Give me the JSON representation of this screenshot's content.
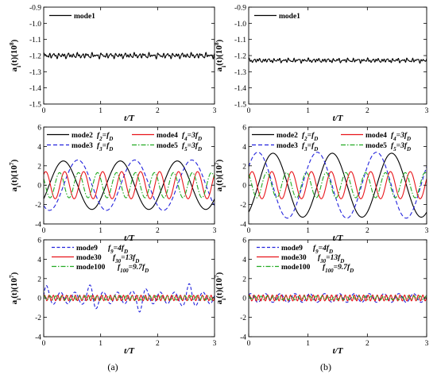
{
  "figure": {
    "column_captions": [
      "(a)",
      "(b)"
    ]
  },
  "chart_data": [
    {
      "type": "line",
      "column": "(a)",
      "row": 0,
      "xlabel": "t/T",
      "ylabel": "a_i(t)(10^8)",
      "ylabel_base": "a",
      "ylabel_sub": "i",
      "ylabel_rest": "(t)(10",
      "ylabel_exp": "8",
      "ylabel_close": ")",
      "xlim": [
        0,
        3
      ],
      "ylim": [
        -1.5,
        -0.9
      ],
      "xticks": [
        0,
        1,
        2,
        3
      ],
      "xtick_labels": [
        "0",
        "1",
        "2",
        "3"
      ],
      "yticks": [
        -1.5,
        -1.4,
        -1.3,
        -1.2,
        -1.1,
        -1.0,
        -0.9
      ],
      "ytick_labels": [
        "-1.5",
        "-1.4",
        "-1.3",
        "-1.2",
        "-1.1",
        "-1.0",
        "-0.9"
      ],
      "legend_position": "top-left",
      "series": [
        {
          "name": "mode1",
          "freq_label": "",
          "color": "#000000",
          "dash": "solid",
          "description": "nearly constant around -1.2, small fluctuations",
          "mean": -1.2,
          "terms": [
            [
              0.008,
              12,
              0.3
            ],
            [
              0.006,
              19,
              1.1
            ],
            [
              0.005,
              27,
              2.0
            ],
            [
              0.004,
              7,
              0.5
            ]
          ]
        }
      ]
    },
    {
      "type": "line",
      "column": "(a)",
      "row": 1,
      "xlabel": "t/T",
      "ylabel": "a_i(t)(10^7)",
      "ylabel_base": "a",
      "ylabel_sub": "i",
      "ylabel_rest": "(t)(10",
      "ylabel_exp": "7",
      "ylabel_close": ")",
      "xlim": [
        0,
        3
      ],
      "ylim": [
        -4,
        6
      ],
      "xticks": [
        0,
        1,
        2,
        3
      ],
      "xtick_labels": [
        "0",
        "1",
        "2",
        "3"
      ],
      "yticks": [
        -4,
        -2,
        0,
        2,
        4,
        6
      ],
      "ytick_labels": [
        "-4",
        "-2",
        "0",
        "2",
        "4",
        "6"
      ],
      "legend_position": "top",
      "series": [
        {
          "name": "mode2",
          "freq_label": "f2=fD",
          "color": "#000000",
          "dash": "solid",
          "mean": 0,
          "terms": [
            [
              2.5,
              1.0,
              -0.6
            ]
          ]
        },
        {
          "name": "mode3",
          "freq_label": "f3=fD",
          "color": "#2222dd",
          "dash": "5,3",
          "mean": 0,
          "terms": [
            [
              2.6,
              1.0,
              -2.2
            ]
          ]
        },
        {
          "name": "mode4",
          "freq_label": "f4=3fD",
          "color": "#e8141a",
          "dash": "solid",
          "mean": 0,
          "terms": [
            [
              1.4,
              3.0,
              0.9
            ]
          ]
        },
        {
          "name": "mode5",
          "freq_label": "f5=3fD",
          "color": "#22aa22",
          "dash": "6,2,1.5,2",
          "mean": 0,
          "terms": [
            [
              1.3,
              3.0,
              2.6
            ]
          ]
        }
      ]
    },
    {
      "type": "line",
      "column": "(a)",
      "row": 2,
      "xlabel": "t/T",
      "ylabel": "a_i(t)(10^7)",
      "ylabel_base": "a",
      "ylabel_sub": "i",
      "ylabel_rest": "(t)(10",
      "ylabel_exp": "7",
      "ylabel_close": ")",
      "xlim": [
        0,
        3
      ],
      "ylim": [
        -4,
        6
      ],
      "xticks": [
        0,
        1,
        2,
        3
      ],
      "xtick_labels": [
        "0",
        "1",
        "2",
        "3"
      ],
      "yticks": [
        -4,
        -2,
        0,
        2,
        4,
        6
      ],
      "ytick_labels": [
        "-4",
        "-2",
        "0",
        "2",
        "4",
        "6"
      ],
      "legend_position": "top",
      "series": [
        {
          "name": "mode9",
          "freq_label": "f9=4fD",
          "color": "#2222dd",
          "dash": "4,2.5",
          "mean": 0,
          "terms": [
            [
              0.6,
              4.0,
              0.4
            ]
          ],
          "burst_period": 0.85,
          "burst_width": 0.12,
          "burst_amp": 0.9
        },
        {
          "name": "mode30",
          "freq_label": "f30=13fD",
          "color": "#e8141a",
          "dash": "solid",
          "mean": 0,
          "terms": [
            [
              0.28,
              13.0,
              0.2
            ]
          ]
        },
        {
          "name": "mode100",
          "freq_label": "f100=9.7fD",
          "color": "#22aa22",
          "dash": "6,2,1.5,2",
          "mean": 0,
          "terms": [
            [
              0.22,
              9.7,
              1.1
            ]
          ]
        }
      ]
    },
    {
      "type": "line",
      "column": "(b)",
      "row": 0,
      "xlabel": "t/T",
      "ylabel": "a_i(t)(10^8)",
      "ylabel_base": "a",
      "ylabel_sub": "i",
      "ylabel_rest": "(t)(10",
      "ylabel_exp": "8",
      "ylabel_close": ")",
      "xlim": [
        0,
        3
      ],
      "ylim": [
        -1.5,
        -0.9
      ],
      "xticks": [
        0,
        1,
        2,
        3
      ],
      "xtick_labels": [
        "0",
        "1",
        "2",
        "3"
      ],
      "yticks": [
        -1.5,
        -1.4,
        -1.3,
        -1.2,
        -1.1,
        -1.0,
        -0.9
      ],
      "ytick_labels": [
        "-1.5",
        "-1.4",
        "-1.3",
        "-1.2",
        "-1.1",
        "-1.0",
        "-0.9"
      ],
      "legend_position": "top-left",
      "series": [
        {
          "name": "mode1",
          "freq_label": "",
          "color": "#000000",
          "dash": "solid",
          "mean": -1.23,
          "terms": [
            [
              0.006,
              12,
              0.7
            ],
            [
              0.005,
              21,
              1.4
            ],
            [
              0.004,
              29,
              0.2
            ],
            [
              0.003,
              6,
              2.1
            ]
          ]
        }
      ]
    },
    {
      "type": "line",
      "column": "(b)",
      "row": 1,
      "xlabel": "t/T",
      "ylabel": "a_i(t)(10^7)",
      "ylabel_base": "a",
      "ylabel_sub": "i",
      "ylabel_rest": "(t)(10",
      "ylabel_exp": "7",
      "ylabel_close": ")",
      "xlim": [
        0,
        3
      ],
      "ylim": [
        -4,
        6
      ],
      "xticks": [
        0,
        1,
        2,
        3
      ],
      "xtick_labels": [
        "0",
        "1",
        "2",
        "3"
      ],
      "yticks": [
        -4,
        -2,
        0,
        2,
        4,
        6
      ],
      "ytick_labels": [
        "-4",
        "-2",
        "0",
        "2",
        "4",
        "6"
      ],
      "legend_position": "top",
      "series": [
        {
          "name": "mode2",
          "freq_label": "f2=fD",
          "color": "#000000",
          "dash": "solid",
          "mean": 0,
          "terms": [
            [
              3.3,
              1.0,
              -1.0
            ]
          ]
        },
        {
          "name": "mode3",
          "freq_label": "f3=fD",
          "color": "#2222dd",
          "dash": "5,3",
          "mean": 0,
          "terms": [
            [
              3.4,
              1.0,
              0.6
            ]
          ]
        },
        {
          "name": "mode4",
          "freq_label": "f4=3fD",
          "color": "#e8141a",
          "dash": "solid",
          "mean": 0,
          "terms": [
            [
              1.4,
              3.0,
              0.5
            ]
          ]
        },
        {
          "name": "mode5",
          "freq_label": "f5=3fD",
          "color": "#22aa22",
          "dash": "6,2,1.5,2",
          "mean": 0,
          "terms": [
            [
              1.3,
              3.0,
              2.1
            ]
          ]
        }
      ]
    },
    {
      "type": "line",
      "column": "(b)",
      "row": 2,
      "xlabel": "t/T",
      "ylabel": "a_i(t)(10^7)",
      "ylabel_base": "a",
      "ylabel_sub": "i",
      "ylabel_rest": "(t)(10",
      "ylabel_exp": "7",
      "ylabel_close": ")",
      "xlim": [
        0,
        3
      ],
      "ylim": [
        -4,
        6
      ],
      "xticks": [
        0,
        1,
        2,
        3
      ],
      "xtick_labels": [
        "0",
        "1",
        "2",
        "3"
      ],
      "yticks": [
        -4,
        -2,
        0,
        2,
        4,
        6
      ],
      "ytick_labels": [
        "-4",
        "-2",
        "0",
        "2",
        "4",
        "6"
      ],
      "legend_position": "top",
      "series": [
        {
          "name": "mode9",
          "freq_label": "f9=4fD",
          "color": "#2222dd",
          "dash": "4,2.5",
          "mean": 0,
          "terms": [
            [
              0.45,
              4.0,
              0.8
            ]
          ]
        },
        {
          "name": "mode30",
          "freq_label": "f30=13fD",
          "color": "#e8141a",
          "dash": "solid",
          "mean": 0,
          "terms": [
            [
              0.3,
              13.0,
              0.5
            ]
          ]
        },
        {
          "name": "mode100",
          "freq_label": "f100=9.7fD",
          "color": "#22aa22",
          "dash": "6,2,1.5,2",
          "mean": 0,
          "terms": [
            [
              0.2,
              9.7,
              1.4
            ]
          ]
        }
      ]
    }
  ]
}
